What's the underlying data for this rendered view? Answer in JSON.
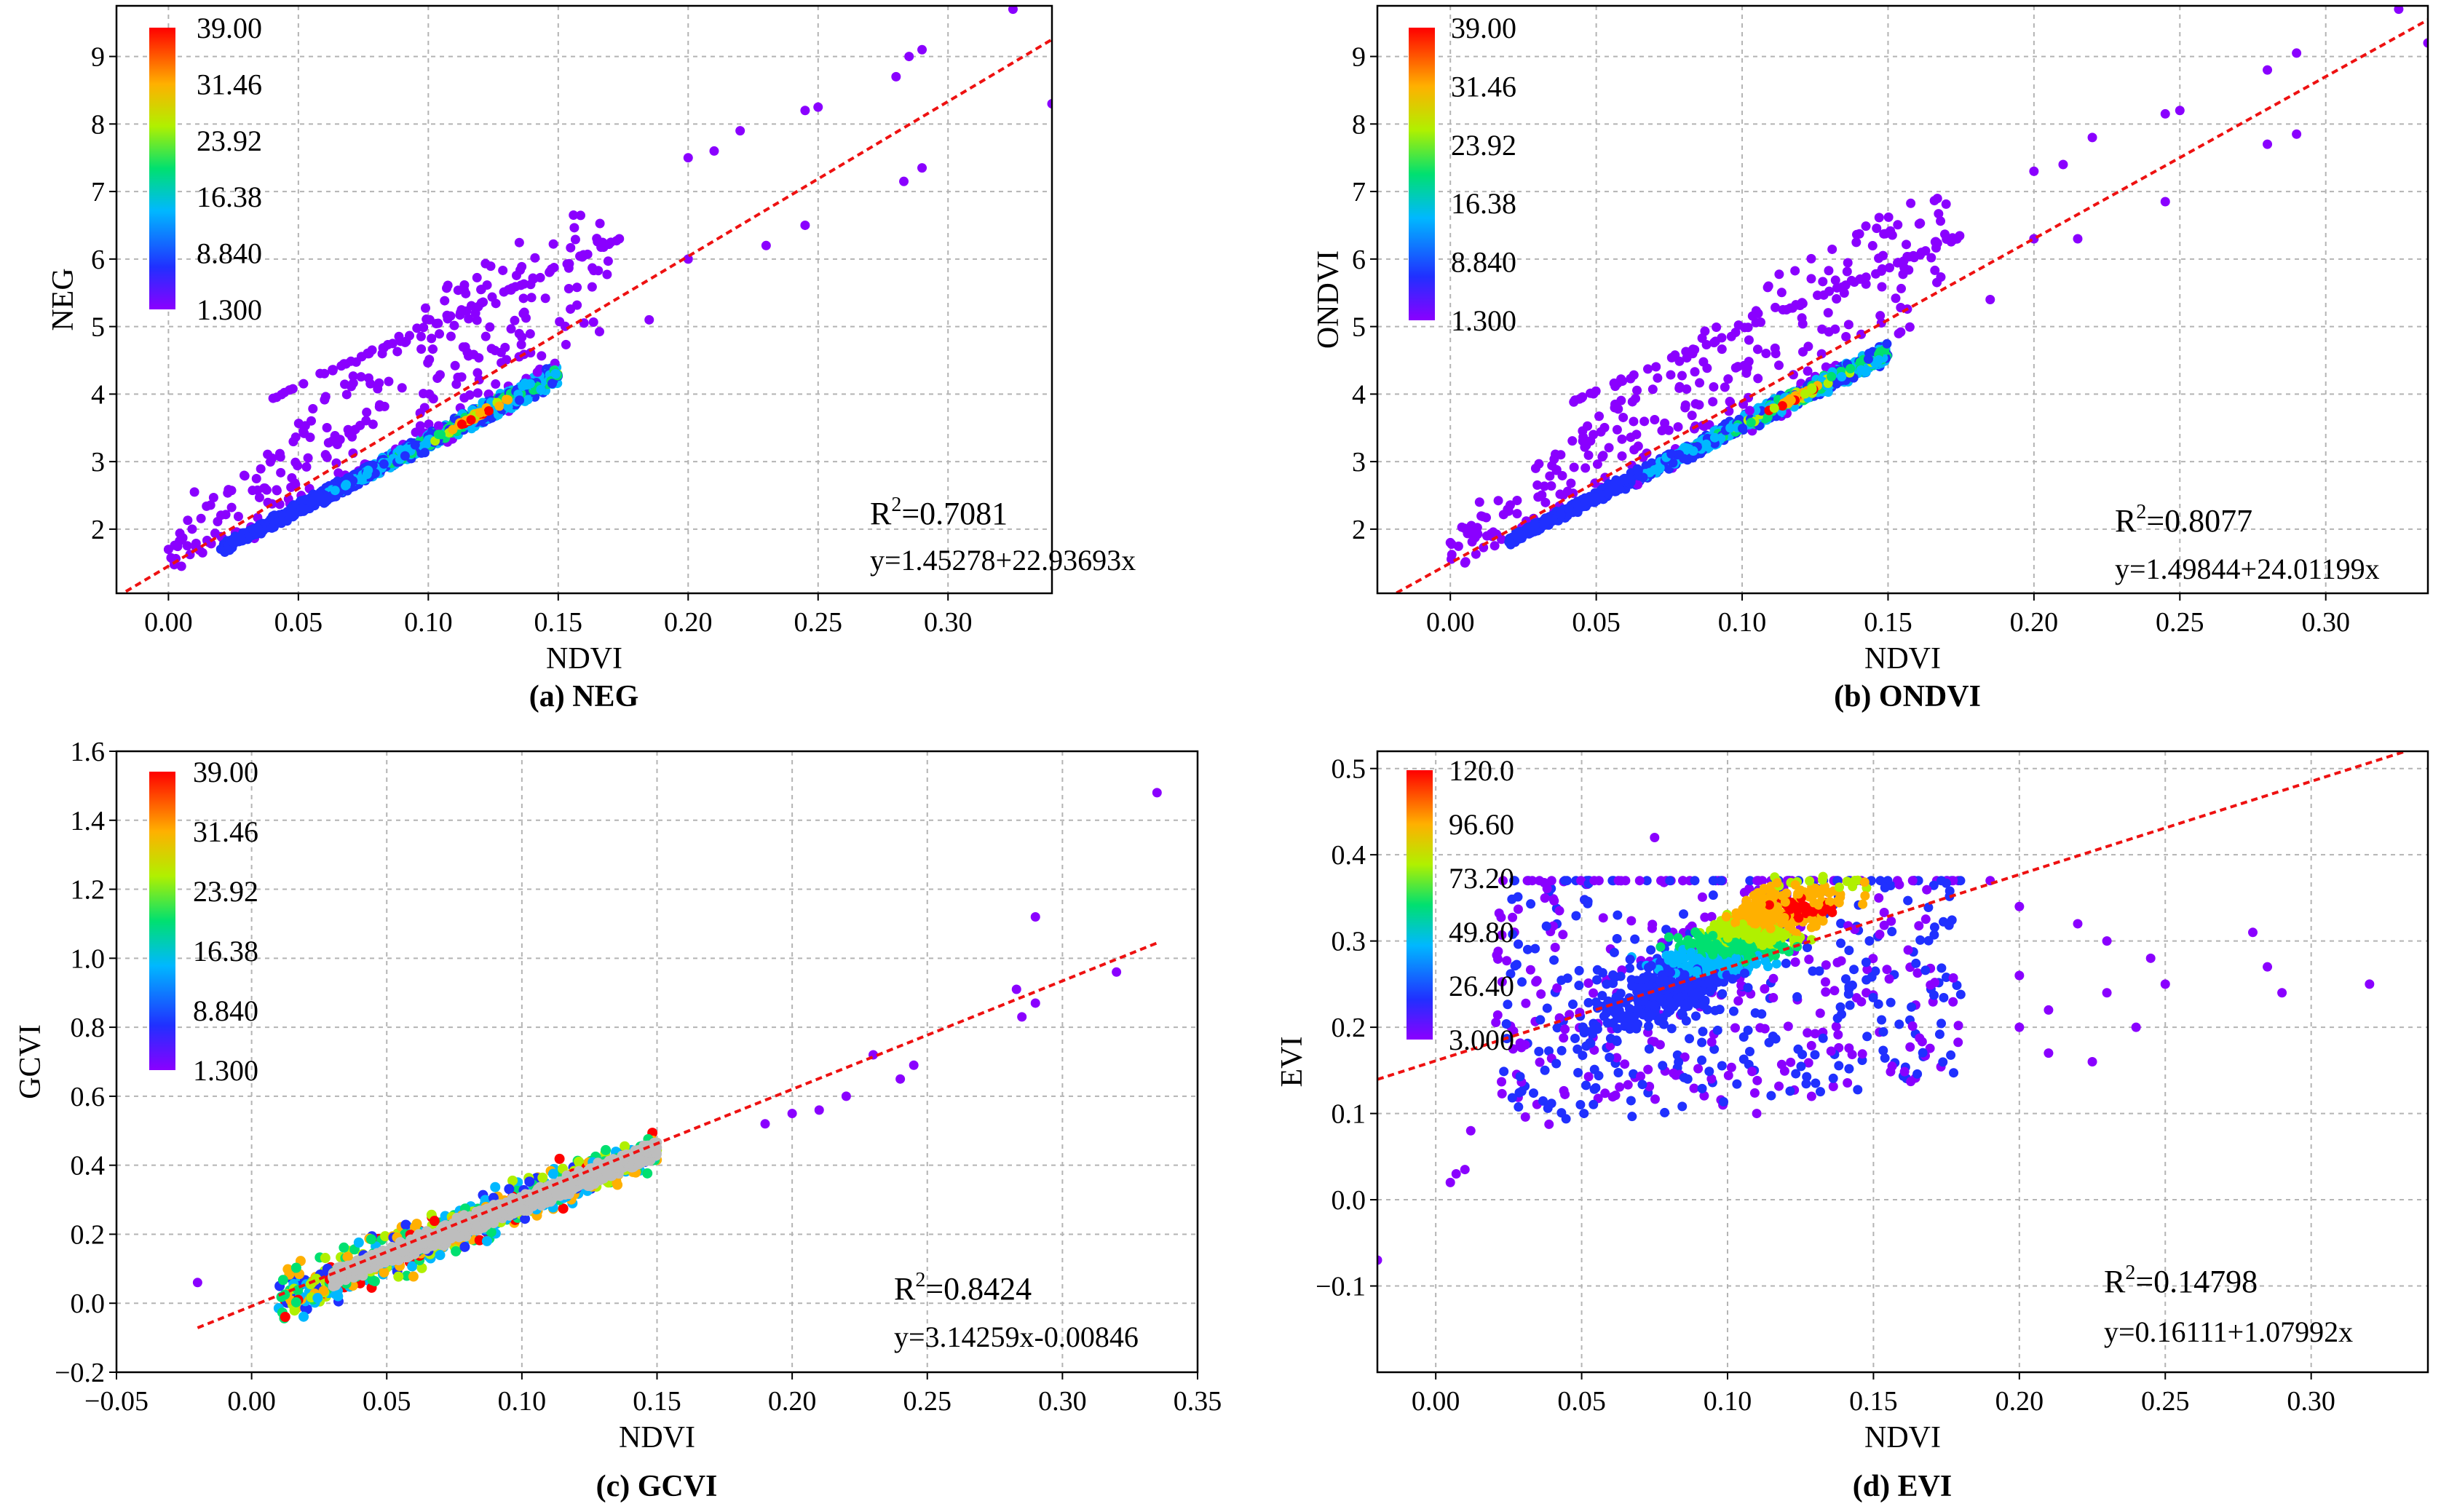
{
  "chart_data": [
    {
      "type": "scatter",
      "caption": "(a) NEG",
      "xlabel": "NDVI",
      "ylabel": "NEG",
      "xlim": [
        -0.02,
        0.34
      ],
      "ylim": [
        1.05,
        9.75
      ],
      "xticks": [
        0.0,
        0.05,
        0.1,
        0.15,
        0.2,
        0.25,
        0.3
      ],
      "xtick_labels": [
        "0.00",
        "0.05",
        "0.10",
        "0.15",
        "0.20",
        "0.25",
        "0.30"
      ],
      "yticks": [
        2,
        3,
        4,
        5,
        6,
        7,
        8,
        9
      ],
      "ytick_labels": [
        "2",
        "3",
        "4",
        "5",
        "6",
        "7",
        "8",
        "9"
      ],
      "grid": true,
      "colorbar": {
        "ticks": [
          "39.00",
          "31.46",
          "23.92",
          "16.38",
          "8.840",
          "1.300"
        ],
        "min": 1.3,
        "max": 39.0
      },
      "r2_text": "=0.7081",
      "equation": "y=1.45278+22.93693x",
      "fit": {
        "intercept": 1.45278,
        "slope": 22.93693
      },
      "cluster": {
        "x_from": 0.02,
        "x_to": 0.15,
        "intercept": 1.3,
        "slope": 20.0,
        "spread": 0.15
      },
      "upper_band": {
        "x_from": 0.04,
        "x_to": 0.175,
        "intercept": 3.95,
        "slope": 17.5
      },
      "scatter_sparse": {
        "x_from": 0.0,
        "x_to": 0.17,
        "above": 1.7,
        "below": 0.4
      },
      "outliers": [
        [
          0.2,
          7.5
        ],
        [
          0.21,
          7.6
        ],
        [
          0.22,
          7.9
        ],
        [
          0.245,
          8.2
        ],
        [
          0.25,
          8.25
        ],
        [
          0.28,
          8.7
        ],
        [
          0.285,
          9.0
        ],
        [
          0.29,
          9.1
        ],
        [
          0.325,
          9.7
        ],
        [
          0.34,
          8.3
        ],
        [
          0.283,
          7.15
        ],
        [
          0.29,
          7.35
        ],
        [
          0.23,
          6.2
        ],
        [
          0.245,
          6.5
        ],
        [
          0.185,
          5.1
        ],
        [
          0.2,
          6.0
        ],
        [
          0.005,
          1.45
        ],
        [
          0.01,
          2.55
        ],
        [
          0.0,
          1.7
        ]
      ]
    },
    {
      "type": "scatter",
      "caption": "(b) ONDVI",
      "xlabel": "NDVI",
      "ylabel": "ONDVI",
      "xlim": [
        -0.025,
        0.335
      ],
      "ylim": [
        1.05,
        9.75
      ],
      "xticks": [
        0.0,
        0.05,
        0.1,
        0.15,
        0.2,
        0.25,
        0.3
      ],
      "xtick_labels": [
        "0.00",
        "0.05",
        "0.10",
        "0.15",
        "0.20",
        "0.25",
        "0.30"
      ],
      "yticks": [
        2,
        3,
        4,
        5,
        6,
        7,
        8,
        9
      ],
      "ytick_labels": [
        "2",
        "3",
        "4",
        "5",
        "6",
        "7",
        "8",
        "9"
      ],
      "grid": true,
      "colorbar": {
        "ticks": [
          "39.00",
          "31.46",
          "23.92",
          "16.38",
          "8.840",
          "1.300"
        ],
        "min": 1.3,
        "max": 39.0
      },
      "r2_text": "=0.8077",
      "equation": "y=1.49844+24.01199x",
      "fit": {
        "intercept": 1.49844,
        "slope": 24.01199
      },
      "cluster": {
        "x_from": 0.02,
        "x_to": 0.15,
        "intercept": 1.4,
        "slope": 21.5,
        "spread": 0.15
      },
      "upper_band": {
        "x_from": 0.04,
        "x_to": 0.175,
        "intercept": 3.85,
        "slope": 18.5
      },
      "scatter_sparse": {
        "x_from": 0.0,
        "x_to": 0.17,
        "above": 1.6,
        "below": 0.4
      },
      "outliers": [
        [
          0.2,
          7.3
        ],
        [
          0.21,
          7.4
        ],
        [
          0.22,
          7.8
        ],
        [
          0.245,
          8.15
        ],
        [
          0.25,
          8.2
        ],
        [
          0.28,
          8.8
        ],
        [
          0.29,
          9.05
        ],
        [
          0.325,
          9.7
        ],
        [
          0.335,
          9.2
        ],
        [
          0.28,
          7.7
        ],
        [
          0.29,
          7.85
        ],
        [
          0.245,
          6.85
        ],
        [
          0.2,
          6.3
        ],
        [
          0.215,
          6.3
        ],
        [
          0.185,
          5.4
        ],
        [
          0.005,
          1.5
        ],
        [
          0.01,
          2.4
        ],
        [
          0.0,
          1.8
        ]
      ]
    },
    {
      "type": "scatter",
      "caption": "(c) GCVI",
      "xlabel": "NDVI",
      "ylabel": "GCVI",
      "xlim": [
        -0.05,
        0.35
      ],
      "ylim": [
        -0.2,
        1.6
      ],
      "xticks": [
        -0.05,
        0.0,
        0.05,
        0.1,
        0.15,
        0.2,
        0.25,
        0.3,
        0.35
      ],
      "xtick_labels": [
        "−0.05",
        "0.00",
        "0.05",
        "0.10",
        "0.15",
        "0.20",
        "0.25",
        "0.30",
        "0.35"
      ],
      "yticks": [
        -0.2,
        0.0,
        0.2,
        0.4,
        0.6,
        0.8,
        1.0,
        1.2,
        1.4,
        1.6
      ],
      "ytick_labels": [
        "−0.2",
        "0.0",
        "0.2",
        "0.4",
        "0.6",
        "0.8",
        "1.0",
        "1.2",
        "1.4",
        "1.6"
      ],
      "grid": true,
      "colorbar": {
        "ticks": [
          "39.00",
          "31.46",
          "23.92",
          "16.38",
          "8.840",
          "1.300"
        ],
        "min": 1.3,
        "max": 39.0
      },
      "r2_text": "=0.8424",
      "equation": "y=3.14259x-0.00846",
      "fit": {
        "intercept": -0.00846,
        "slope": 3.14259,
        "x_from": -0.02,
        "x_to": 0.335
      },
      "cluster": {
        "x_from": 0.01,
        "x_to": 0.15,
        "intercept": -0.02,
        "slope": 3.1,
        "spread": 0.06
      },
      "outliers": [
        [
          -0.02,
          0.06
        ],
        [
          0.19,
          0.52
        ],
        [
          0.2,
          0.55
        ],
        [
          0.21,
          0.56
        ],
        [
          0.22,
          0.6
        ],
        [
          0.24,
          0.65
        ],
        [
          0.245,
          0.69
        ],
        [
          0.23,
          0.72
        ],
        [
          0.285,
          0.83
        ],
        [
          0.29,
          0.87
        ],
        [
          0.283,
          0.91
        ],
        [
          0.32,
          0.96
        ],
        [
          0.29,
          1.12
        ],
        [
          0.335,
          1.48
        ]
      ]
    },
    {
      "type": "scatter",
      "caption": "(d) EVI",
      "xlabel": "NDVI",
      "ylabel": "EVI",
      "xlim": [
        -0.02,
        0.34
      ],
      "ylim": [
        -0.2,
        0.52
      ],
      "xticks": [
        0.0,
        0.05,
        0.1,
        0.15,
        0.2,
        0.25,
        0.3
      ],
      "xtick_labels": [
        "0.00",
        "0.05",
        "0.10",
        "0.15",
        "0.20",
        "0.25",
        "0.30"
      ],
      "yticks": [
        -0.1,
        0.0,
        0.1,
        0.2,
        0.3,
        0.4,
        0.5
      ],
      "ytick_labels": [
        "−0.1",
        "0.0",
        "0.1",
        "0.2",
        "0.3",
        "0.4",
        "0.5"
      ],
      "grid": true,
      "colorbar": {
        "ticks": [
          "120.0",
          "96.60",
          "73.20",
          "49.80",
          "26.40",
          "3.000"
        ],
        "min": 3.0,
        "max": 120.0
      },
      "r2_text": "=0.14798",
      "equation": "y=0.16111+1.07992x",
      "fit": {
        "intercept": 0.16111,
        "slope": 1.07992
      },
      "cluster": {
        "x_from": 0.02,
        "x_to": 0.16,
        "intercept": 0.1,
        "slope": 1.9,
        "spread": 0.06
      },
      "outliers": [
        [
          -0.02,
          -0.07
        ],
        [
          0.005,
          0.02
        ],
        [
          0.007,
          0.03
        ],
        [
          0.01,
          0.035
        ],
        [
          0.012,
          0.08
        ],
        [
          0.2,
          0.34
        ],
        [
          0.2,
          0.26
        ],
        [
          0.21,
          0.22
        ],
        [
          0.22,
          0.32
        ],
        [
          0.225,
          0.16
        ],
        [
          0.23,
          0.3
        ],
        [
          0.24,
          0.2
        ],
        [
          0.245,
          0.28
        ],
        [
          0.25,
          0.25
        ],
        [
          0.28,
          0.31
        ],
        [
          0.285,
          0.27
        ],
        [
          0.29,
          0.24
        ],
        [
          0.32,
          0.25
        ],
        [
          0.2,
          0.2
        ],
        [
          0.21,
          0.17
        ],
        [
          0.23,
          0.24
        ],
        [
          0.19,
          0.37
        ],
        [
          0.075,
          0.42
        ],
        [
          0.11,
          0.1
        ]
      ]
    }
  ]
}
